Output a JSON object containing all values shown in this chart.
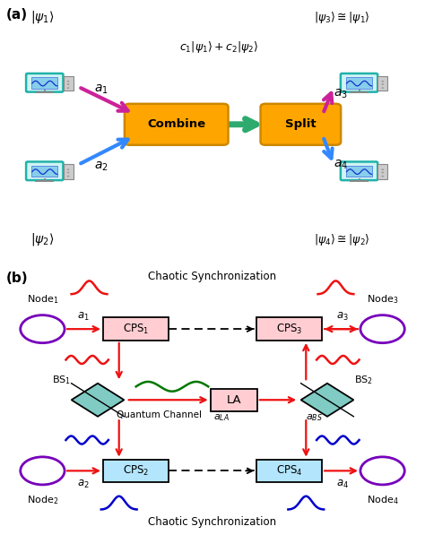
{
  "fig_width": 4.74,
  "fig_height": 5.97,
  "bg_color": "#ffffff",
  "panel_a": {
    "label": "(a)",
    "psi1": "$|\\psi_1\\rangle$",
    "psi2": "$|\\psi_2\\rangle$",
    "psi3": "$|\\psi_3\\rangle \\cong |\\psi_1\\rangle$",
    "psi4": "$|\\psi_4\\rangle \\cong |\\psi_2\\rangle$",
    "combined": "$c_1|\\psi_1\\rangle + c_2|\\psi_2\\rangle$",
    "combine_color": "#FFA500",
    "split_color": "#FFA500",
    "arrow_green": "#2EAA6E",
    "arrow_pink": "#CC3399",
    "arrow_blue": "#3399FF",
    "monitor_edge": "#20B2AA",
    "monitor_screen": "#87CEEB"
  },
  "panel_b": {
    "label": "(b)",
    "cps1_color": "#FFCDD2",
    "cps2_color": "#B3E5FC",
    "cps3_color": "#FFCDD2",
    "cps4_color": "#B3E5FC",
    "la_color": "#FFCDD2",
    "bs_color": "#80CBC4",
    "red": "#EE1111",
    "green": "#007700",
    "blue": "#0000CC",
    "purple": "#7700BB",
    "black": "#000000"
  }
}
